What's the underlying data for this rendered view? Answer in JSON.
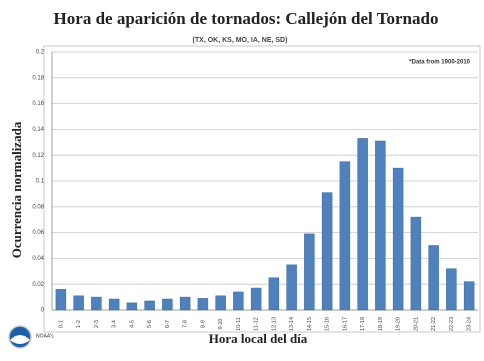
{
  "chart_data": {
    "type": "bar",
    "title": "Hora de aparición de tornados: Callejón del Tornado",
    "subtitle": "(TX, OK, KS, MO, IA, NE, SD)",
    "annotation": "*Data from 1900-2010",
    "x_label": "Hora local del día",
    "y_label": "Ocurrencia normalizada",
    "categories": [
      "0-1",
      "1-2",
      "2-3",
      "3-4",
      "4-5",
      "5-6",
      "6-7",
      "7-8",
      "8-9",
      "9-10",
      "10-11",
      "11-12",
      "12-13",
      "13-14",
      "14-15",
      "15-16",
      "16-17",
      "17-18",
      "18-19",
      "19-20",
      "20-21",
      "21-22",
      "22-23",
      "23-24"
    ],
    "values": [
      0.016,
      0.011,
      0.01,
      0.0085,
      0.0055,
      0.007,
      0.0085,
      0.01,
      0.009,
      0.011,
      0.014,
      0.017,
      0.025,
      0.035,
      0.059,
      0.091,
      0.115,
      0.133,
      0.131,
      0.11,
      0.072,
      0.05,
      0.032,
      0.022
    ],
    "color": "#4f81bd",
    "ylim": [
      0,
      0.2
    ],
    "yticks": [
      0,
      0.02,
      0.04,
      0.06,
      0.08,
      0.1,
      0.12,
      0.14,
      0.16,
      0.18,
      0.2
    ],
    "grid": true
  },
  "logo": {
    "label": "NOAA's"
  }
}
